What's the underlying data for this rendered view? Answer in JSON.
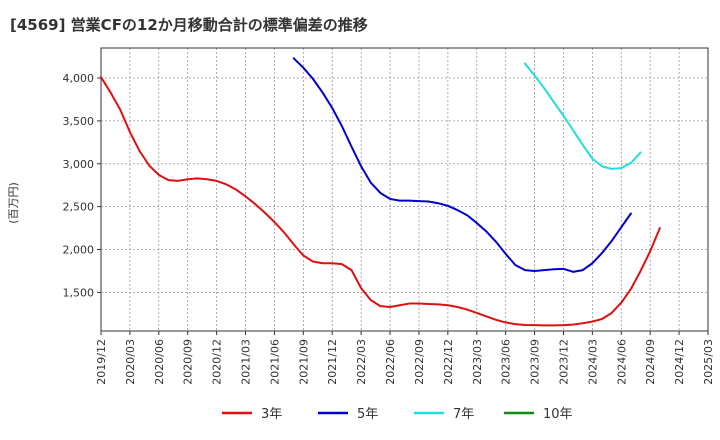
{
  "chart_data": {
    "type": "line",
    "title": "[4569]  営業CFの12か月移動合計の標準偏差の推移",
    "ylabel": "(百万円)",
    "ylim": [
      1050,
      4350
    ],
    "yticks": [
      1500,
      2000,
      2500,
      3000,
      3500,
      4000
    ],
    "ytick_labels": [
      "1,500",
      "2,000",
      "2,500",
      "3,000",
      "3,500",
      "4,000"
    ],
    "x_range": [
      "2019-12",
      "2025-03"
    ],
    "xtick_labels": [
      "2019/12",
      "2020/03",
      "2020/06",
      "2020/09",
      "2020/12",
      "2021/03",
      "2021/06",
      "2021/09",
      "2021/12",
      "2022/03",
      "2022/06",
      "2022/09",
      "2022/12",
      "2023/03",
      "2023/06",
      "2023/09",
      "2023/12",
      "2024/03",
      "2024/06",
      "2024/09",
      "2024/12",
      "2025/03"
    ],
    "grid": true,
    "legend_position": "bottom",
    "series": [
      {
        "name": "3年",
        "color": "#dd1111",
        "start": "2019-12",
        "values": [
          4010,
          3830,
          3630,
          3370,
          3150,
          2980,
          2870,
          2810,
          2800,
          2820,
          2830,
          2820,
          2800,
          2760,
          2700,
          2620,
          2530,
          2430,
          2320,
          2200,
          2060,
          1930,
          1860,
          1840,
          1840,
          1830,
          1760,
          1550,
          1410,
          1340,
          1330,
          1350,
          1370,
          1370,
          1365,
          1360,
          1350,
          1330,
          1300,
          1260,
          1220,
          1180,
          1150,
          1130,
          1120,
          1118,
          1115,
          1115,
          1118,
          1125,
          1140,
          1160,
          1190,
          1260,
          1380,
          1540,
          1750,
          1980,
          2250
        ]
      },
      {
        "name": "5年",
        "color": "#0000cc",
        "start": "2021-08",
        "values": [
          4230,
          4120,
          3990,
          3830,
          3650,
          3440,
          3200,
          2970,
          2780,
          2660,
          2590,
          2570,
          2570,
          2565,
          2560,
          2540,
          2510,
          2460,
          2400,
          2310,
          2210,
          2090,
          1950,
          1820,
          1760,
          1750,
          1760,
          1770,
          1775,
          1740,
          1760,
          1840,
          1960,
          2100,
          2260,
          2420
        ]
      },
      {
        "name": "7年",
        "color": "#22dddd",
        "start": "2023-08",
        "values": [
          4170,
          4030,
          3880,
          3720,
          3560,
          3390,
          3220,
          3060,
          2970,
          2940,
          2950,
          3010,
          3130
        ]
      },
      {
        "name": "10年",
        "color": "#118811",
        "start": "2025-03",
        "values": []
      }
    ]
  }
}
